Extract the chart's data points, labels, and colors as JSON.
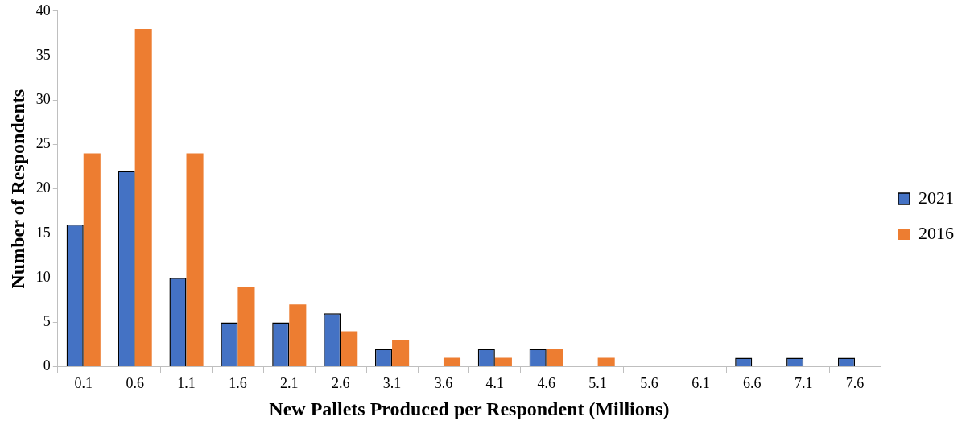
{
  "chart_data": {
    "type": "bar",
    "xlabel": "New Pallets Produced per Respondent (Millions)",
    "ylabel": "Number of Respondents",
    "categories": [
      "0.1",
      "0.6",
      "1.1",
      "1.6",
      "2.1",
      "2.6",
      "3.1",
      "3.6",
      "4.1",
      "4.6",
      "5.1",
      "5.6",
      "6.1",
      "6.6",
      "7.1",
      "7.6"
    ],
    "series": [
      {
        "name": "2021",
        "color": "#4472c4",
        "values": [
          16,
          22,
          10,
          5,
          5,
          6,
          2,
          0,
          2,
          2,
          0,
          0,
          0,
          1,
          1,
          1
        ]
      },
      {
        "name": "2016",
        "color": "#ed7d31",
        "values": [
          24,
          38,
          24,
          9,
          7,
          4,
          3,
          1,
          1,
          2,
          1,
          0,
          0,
          0,
          0,
          0
        ]
      }
    ],
    "ylim": [
      0,
      40
    ],
    "yticks": [
      0,
      5,
      10,
      15,
      20,
      25,
      30,
      35,
      40
    ],
    "grid": false,
    "legend": "right"
  }
}
